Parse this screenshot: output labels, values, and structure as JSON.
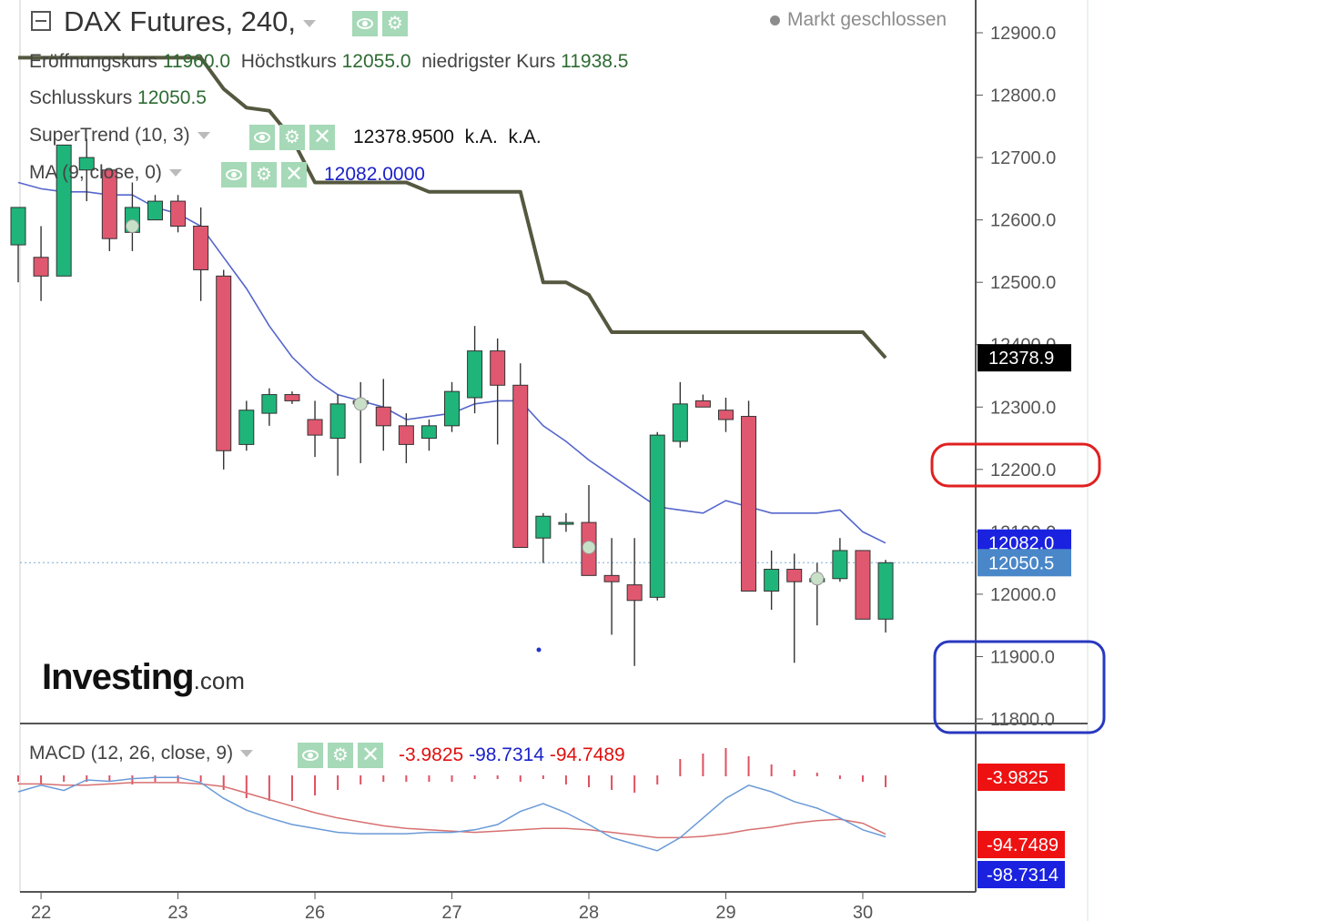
{
  "header": {
    "title": "DAX Futures, 240,",
    "status": "Markt geschlossen",
    "ohlc": [
      {
        "label": "Eröffnungskurs",
        "value": "11960.0"
      },
      {
        "label": "Höchstkurs",
        "value": "12055.0"
      },
      {
        "label": "niedrigster Kurs",
        "value": "11938.5"
      },
      {
        "label": "Schlusskurs",
        "value": "12050.5"
      }
    ]
  },
  "indicators": {
    "supertrend": {
      "label": "SuperTrend (10, 3)",
      "value": "12378.9500",
      "extra1": "k.A.",
      "extra2": "k.A."
    },
    "ma": {
      "label": "MA (9, close, 0)",
      "value": "12082.0000"
    },
    "macd": {
      "label": "MACD (12, 26, close, 9)",
      "hist": "-3.9825",
      "macd": "-98.7314",
      "signal": "-94.7489"
    }
  },
  "branding": {
    "logo": "Investing",
    "logo_suffix": ".com"
  },
  "colors": {
    "up": "#1fb57a",
    "down": "#e0586f",
    "supertrend": "#55583f",
    "ma": "#5566cc",
    "macd_line": "#6a9ad8",
    "signal_line": "#d77070",
    "hist": "#e05060"
  },
  "chart_data": {
    "type": "candlestick",
    "price_axis": {
      "min": 11800,
      "max": 12900,
      "ticks": [
        "12900.0",
        "12800.0",
        "12700.0",
        "12600.0",
        "12500.0",
        "12400.0",
        "12300.0",
        "12200.0",
        "12100.0",
        "12000.0",
        "11900.0",
        "11800.0"
      ]
    },
    "x_labels": [
      {
        "label": "22",
        "bar": 1
      },
      {
        "label": "23",
        "bar": 7
      },
      {
        "label": "26",
        "bar": 13
      },
      {
        "label": "27",
        "bar": 19
      },
      {
        "label": "28",
        "bar": 25
      },
      {
        "label": "29",
        "bar": 31
      },
      {
        "label": "30",
        "bar": 37
      }
    ],
    "candles": [
      {
        "o": 12560,
        "h": 12620,
        "l": 12500,
        "c": 12620
      },
      {
        "o": 12540,
        "h": 12590,
        "l": 12470,
        "c": 12510
      },
      {
        "o": 12510,
        "h": 12720,
        "l": 12510,
        "c": 12720
      },
      {
        "o": 12680,
        "h": 12730,
        "l": 12630,
        "c": 12700
      },
      {
        "o": 12680,
        "h": 12680,
        "l": 12550,
        "c": 12570
      },
      {
        "o": 12580,
        "h": 12660,
        "l": 12550,
        "c": 12620
      },
      {
        "o": 12600,
        "h": 12640,
        "l": 12600,
        "c": 12630
      },
      {
        "o": 12630,
        "h": 12640,
        "l": 12580,
        "c": 12590
      },
      {
        "o": 12590,
        "h": 12620,
        "l": 12470,
        "c": 12520
      },
      {
        "o": 12510,
        "h": 12520,
        "l": 12200,
        "c": 12230
      },
      {
        "o": 12240,
        "h": 12310,
        "l": 12230,
        "c": 12295
      },
      {
        "o": 12290,
        "h": 12330,
        "l": 12270,
        "c": 12320
      },
      {
        "o": 12320,
        "h": 12325,
        "l": 12305,
        "c": 12310
      },
      {
        "o": 12280,
        "h": 12310,
        "l": 12220,
        "c": 12255
      },
      {
        "o": 12250,
        "h": 12320,
        "l": 12190,
        "c": 12305
      },
      {
        "o": 12310,
        "h": 12340,
        "l": 12210,
        "c": 12305
      },
      {
        "o": 12300,
        "h": 12345,
        "l": 12230,
        "c": 12270
      },
      {
        "o": 12270,
        "h": 12290,
        "l": 12210,
        "c": 12240
      },
      {
        "o": 12250,
        "h": 12280,
        "l": 12230,
        "c": 12270
      },
      {
        "o": 12270,
        "h": 12340,
        "l": 12260,
        "c": 12325
      },
      {
        "o": 12315,
        "h": 12430,
        "l": 12290,
        "c": 12390
      },
      {
        "o": 12390,
        "h": 12410,
        "l": 12240,
        "c": 12335
      },
      {
        "o": 12335,
        "h": 12370,
        "l": 12080,
        "c": 12075
      },
      {
        "o": 12090,
        "h": 12130,
        "l": 12050,
        "c": 12125
      },
      {
        "o": 12115,
        "h": 12130,
        "l": 12100,
        "c": 12115
      },
      {
        "o": 12115,
        "h": 12175,
        "l": 12030,
        "c": 12030
      },
      {
        "o": 12030,
        "h": 12090,
        "l": 11935,
        "c": 12020
      },
      {
        "o": 12015,
        "h": 12090,
        "l": 11885,
        "c": 11990
      },
      {
        "o": 11995,
        "h": 12260,
        "l": 11990,
        "c": 12255
      },
      {
        "o": 12245,
        "h": 12340,
        "l": 12235,
        "c": 12305
      },
      {
        "o": 12310,
        "h": 12320,
        "l": 12300,
        "c": 12300
      },
      {
        "o": 12295,
        "h": 12315,
        "l": 12260,
        "c": 12280
      },
      {
        "o": 12285,
        "h": 12310,
        "l": 12005,
        "c": 12005
      },
      {
        "o": 12005,
        "h": 12070,
        "l": 11975,
        "c": 12040
      },
      {
        "o": 12040,
        "h": 12065,
        "l": 11890,
        "c": 12020
      },
      {
        "o": 12020,
        "h": 12050,
        "l": 11950,
        "c": 12025
      },
      {
        "o": 12025,
        "h": 12090,
        "l": 12020,
        "c": 12070
      },
      {
        "o": 12070,
        "h": 12070,
        "l": 11960,
        "c": 11960
      },
      {
        "o": 11960,
        "h": 12055,
        "l": 11938.5,
        "c": 12050.5
      }
    ],
    "supertrend": [
      12860,
      12860,
      12860,
      12860,
      12860,
      12860,
      12860,
      12860,
      12860,
      12810,
      12780,
      12775,
      12730,
      12660,
      12660,
      12660,
      12660,
      12660,
      12645,
      12645,
      12645,
      12645,
      12645,
      12500,
      12500,
      12480,
      12420,
      12420,
      12420,
      12420,
      12420,
      12420,
      12420,
      12420,
      12420,
      12420,
      12420,
      12420,
      12378.95
    ],
    "ma": [
      12660,
      12650,
      12645,
      12645,
      12640,
      12640,
      12620,
      12610,
      12590,
      12540,
      12490,
      12430,
      12380,
      12345,
      12320,
      12310,
      12300,
      12280,
      12285,
      12290,
      12305,
      12310,
      12310,
      12270,
      12245,
      12215,
      12190,
      12165,
      12140,
      12135,
      12130,
      12150,
      12140,
      12130,
      12130,
      12130,
      12135,
      12100,
      12082
    ],
    "markers": [
      {
        "bar": 5,
        "price": 12590
      },
      {
        "bar": 15,
        "price": 12305
      },
      {
        "bar": 25,
        "price": 12075
      },
      {
        "bar": 35,
        "price": 12025
      }
    ],
    "price_tags": [
      {
        "value": "12378.9",
        "price": 12378.95,
        "color": "#000000"
      },
      {
        "value": "12082.0",
        "price": 12082,
        "color": "#1a22e0"
      },
      {
        "value": "12050.5",
        "price": 12050.5,
        "color": "#4a87c9"
      }
    ],
    "macd_hist": [
      -2,
      -3,
      -2,
      -2,
      -2,
      -3,
      -2,
      -2,
      -2,
      -5,
      -8,
      -9,
      -9,
      -7,
      -5,
      -3,
      -2,
      -2,
      -2,
      -2,
      -1,
      -1,
      -2,
      -1,
      -3,
      -4,
      -5,
      -6,
      -3,
      6,
      8,
      10,
      7,
      4,
      2,
      1,
      -1,
      -2,
      -3.98
    ],
    "macd_line": [
      -30,
      -20,
      -28,
      -12,
      -14,
      -10,
      -8,
      -8,
      -16,
      -40,
      -58,
      -70,
      -80,
      -86,
      -92,
      -94,
      -94,
      -94,
      -92,
      -92,
      -88,
      -80,
      -60,
      -48,
      -62,
      -80,
      -100,
      -110,
      -120,
      -100,
      -70,
      -40,
      -20,
      -30,
      -45,
      -55,
      -70,
      -88,
      -98.73
    ],
    "signal_line": [
      -18,
      -18,
      -20,
      -20,
      -18,
      -16,
      -16,
      -16,
      -18,
      -22,
      -32,
      -42,
      -52,
      -62,
      -70,
      -76,
      -82,
      -86,
      -88,
      -90,
      -92,
      -90,
      -88,
      -86,
      -86,
      -88,
      -92,
      -96,
      -100,
      -100,
      -98,
      -94,
      -88,
      -84,
      -78,
      -74,
      -72,
      -78,
      -94.75
    ],
    "macd_axis": {
      "min": -180,
      "max": 70
    },
    "macd_tags": [
      {
        "value": "-3.9825",
        "y": -3.9825,
        "color": "#ee1111"
      },
      {
        "value": "-94.7489",
        "y": -94.7489,
        "color": "#ee1111"
      },
      {
        "value": "-98.7314",
        "y": -98.7314,
        "color": "#1a22e0"
      }
    ]
  }
}
